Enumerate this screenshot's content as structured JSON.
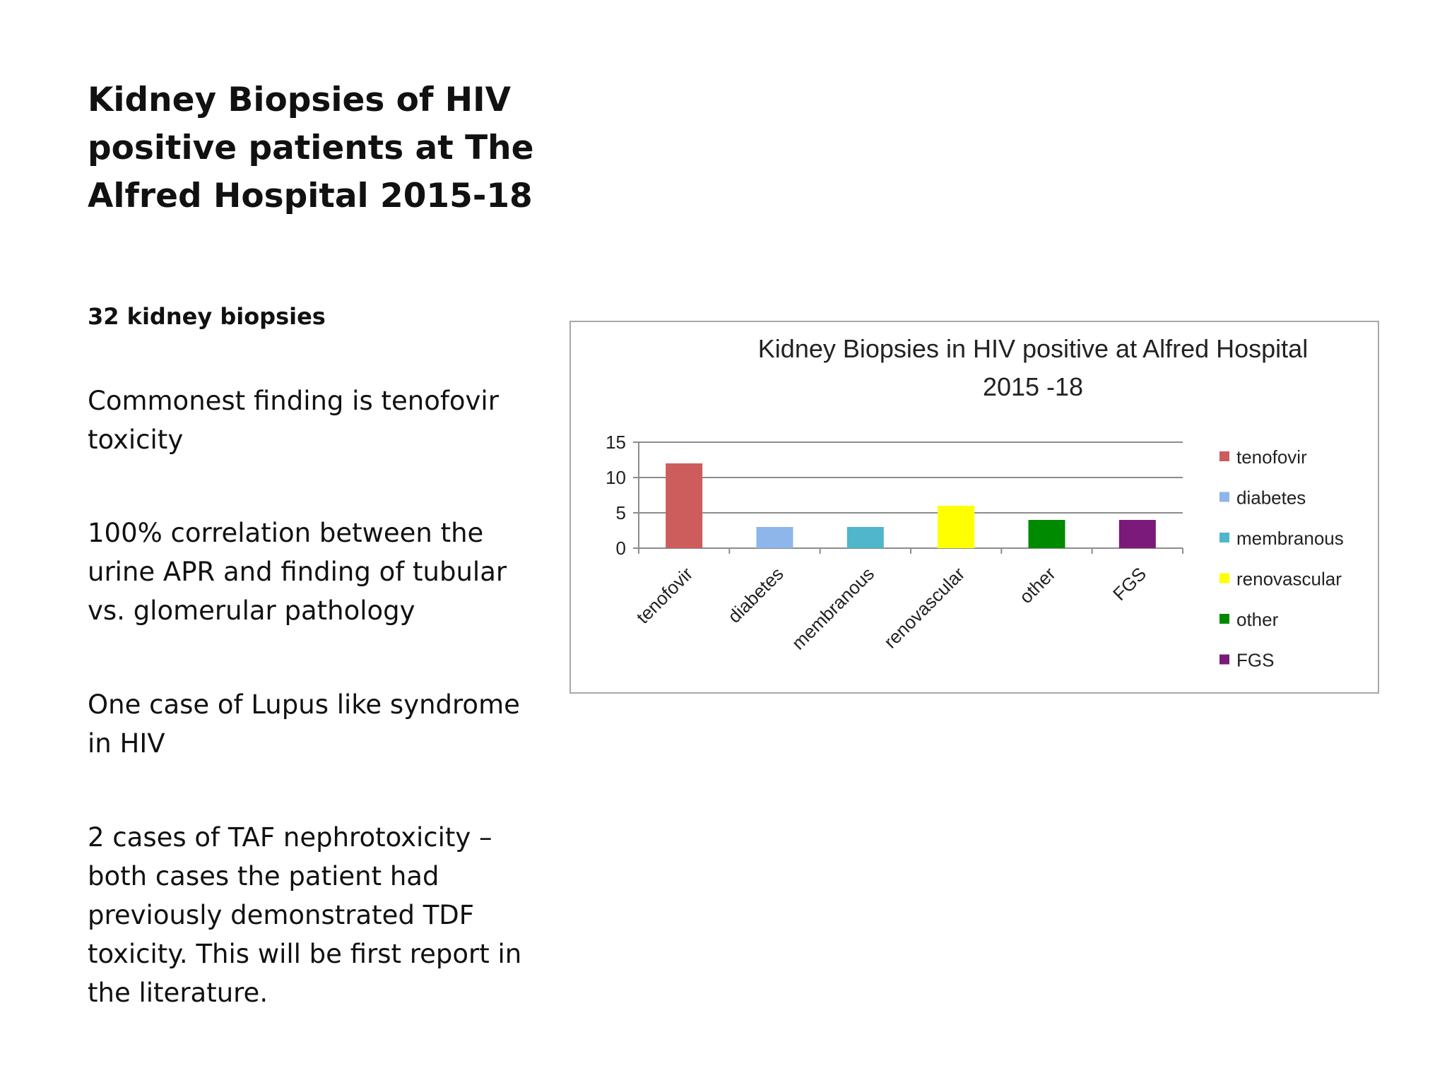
{
  "slide": {
    "title_lines": [
      "Kidney Biopsies of HIV",
      "positive patients at The",
      "Alfred Hospital 2015-18"
    ],
    "subheading": "32 kidney biopsies",
    "paragraphs": [
      {
        "lines": [
          "Commonest finding is tenofovir",
          "toxicity"
        ]
      },
      {
        "lines": [
          "100% correlation between the",
          "urine APR and finding of tubular",
          "vs. glomerular pathology"
        ]
      },
      {
        "lines": [
          "One case of Lupus like syndrome",
          "in HIV"
        ]
      },
      {
        "lines": [
          "2 cases of TAF nephrotoxicity –",
          "both cases the patient had",
          "previously demonstrated TDF",
          "toxicity.  This will be first report in",
          "the literature."
        ]
      }
    ]
  },
  "chart_data": {
    "type": "bar",
    "title_lines": [
      "Kidney Biopsies in HIV positive  at Alfred Hospital",
      "2015 -18"
    ],
    "categories": [
      "tenofovir",
      "diabetes",
      "membranous",
      "renovascular",
      "other",
      "FGS"
    ],
    "values": [
      12,
      3,
      3,
      6,
      4,
      4
    ],
    "colors": [
      "#cd5c5c",
      "#8fb6ea",
      "#4fb6cc",
      "#ffff00",
      "#008a00",
      "#7b1a7b"
    ],
    "yticks": [
      0,
      5,
      10,
      15
    ],
    "ylim": [
      0,
      15
    ],
    "grid": true,
    "legend_position": "right",
    "xlabel": "",
    "ylabel": ""
  }
}
